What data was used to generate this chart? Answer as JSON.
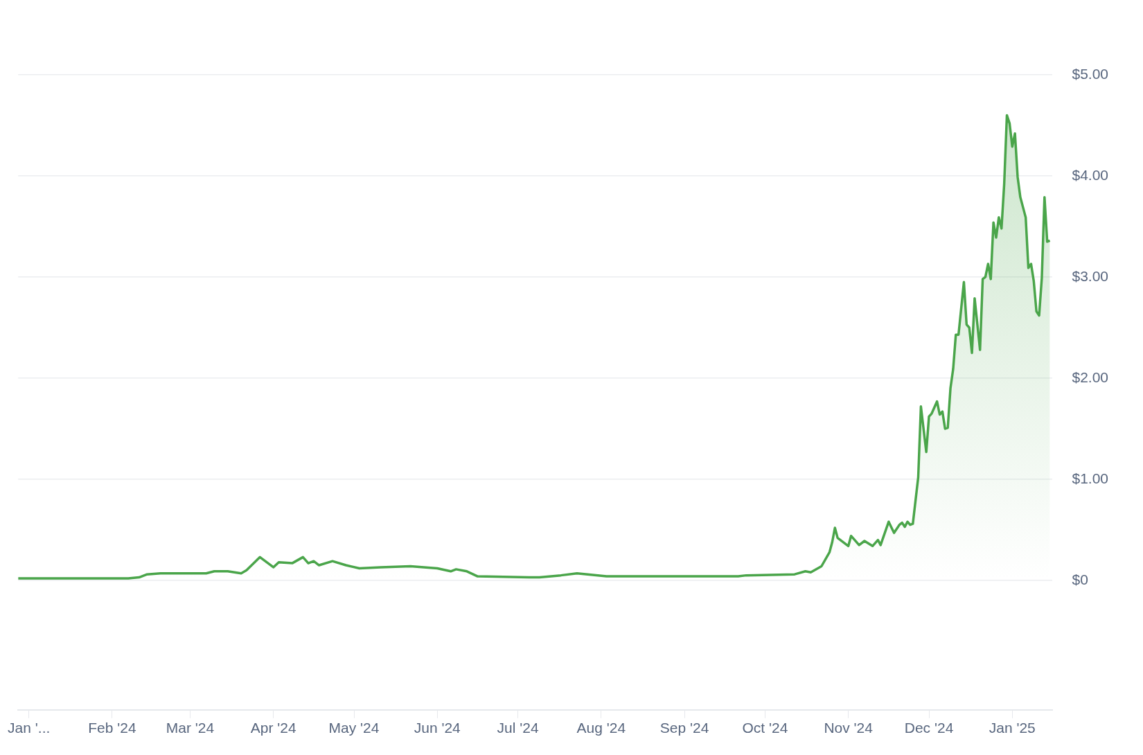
{
  "chart_data": {
    "type": "area",
    "x": [
      "2023-12-28",
      "2024-01-15",
      "2024-02-01",
      "2024-02-07",
      "2024-02-11",
      "2024-02-14",
      "2024-02-19",
      "2024-03-07",
      "2024-03-10",
      "2024-03-15",
      "2024-03-20",
      "2024-03-22",
      "2024-03-27",
      "2024-04-01",
      "2024-04-03",
      "2024-04-08",
      "2024-04-12",
      "2024-04-14",
      "2024-04-16",
      "2024-04-18",
      "2024-04-23",
      "2024-04-28",
      "2024-05-03",
      "2024-05-11",
      "2024-05-22",
      "2024-06-01",
      "2024-06-06",
      "2024-06-08",
      "2024-06-12",
      "2024-06-16",
      "2024-07-06",
      "2024-07-09",
      "2024-07-17",
      "2024-07-23",
      "2024-08-03",
      "2024-09-21",
      "2024-09-24",
      "2024-10-12",
      "2024-10-16",
      "2024-10-18",
      "2024-10-22",
      "2024-10-25",
      "2024-10-26",
      "2024-10-27",
      "2024-10-28",
      "2024-11-01",
      "2024-11-02",
      "2024-11-05",
      "2024-11-07",
      "2024-11-10",
      "2024-11-12",
      "2024-11-13",
      "2024-11-16",
      "2024-11-18",
      "2024-11-20",
      "2024-11-21",
      "2024-11-22",
      "2024-11-23",
      "2024-11-24",
      "2024-11-25",
      "2024-11-27",
      "2024-11-28",
      "2024-11-30",
      "2024-12-01",
      "2024-12-02",
      "2024-12-04",
      "2024-12-05",
      "2024-12-06",
      "2024-12-07",
      "2024-12-08",
      "2024-12-09",
      "2024-12-10",
      "2024-12-11",
      "2024-12-12",
      "2024-12-14",
      "2024-12-15",
      "2024-12-16",
      "2024-12-17",
      "2024-12-18",
      "2024-12-20",
      "2024-12-21",
      "2024-12-22",
      "2024-12-23",
      "2024-12-24",
      "2024-12-25",
      "2024-12-26",
      "2024-12-27",
      "2024-12-28",
      "2024-12-29",
      "2024-12-30",
      "2024-12-31",
      "2025-01-01",
      "2025-01-02",
      "2025-01-03",
      "2025-01-04",
      "2025-01-06",
      "2025-01-07",
      "2025-01-08",
      "2025-01-09",
      "2025-01-10",
      "2025-01-11",
      "2025-01-12",
      "2025-01-13",
      "2025-01-14",
      "2025-01-15"
    ],
    "series": [
      {
        "color": "#4aa54a",
        "values": [
          0.02,
          0.02,
          0.02,
          0.02,
          0.03,
          0.06,
          0.07,
          0.07,
          0.09,
          0.09,
          0.07,
          0.1,
          0.23,
          0.13,
          0.18,
          0.17,
          0.23,
          0.17,
          0.19,
          0.15,
          0.19,
          0.15,
          0.12,
          0.13,
          0.14,
          0.12,
          0.09,
          0.11,
          0.09,
          0.04,
          0.03,
          0.03,
          0.05,
          0.07,
          0.04,
          0.04,
          0.05,
          0.06,
          0.09,
          0.08,
          0.14,
          0.28,
          0.38,
          0.52,
          0.42,
          0.34,
          0.44,
          0.35,
          0.39,
          0.34,
          0.4,
          0.35,
          0.58,
          0.47,
          0.55,
          0.57,
          0.53,
          0.58,
          0.55,
          0.56,
          1.02,
          1.72,
          1.27,
          1.62,
          1.65,
          1.77,
          1.64,
          1.67,
          1.5,
          1.51,
          1.9,
          2.09,
          2.43,
          2.43,
          2.95,
          2.53,
          2.5,
          2.25,
          2.79,
          2.28,
          2.98,
          3.0,
          3.13,
          2.98,
          3.54,
          3.39,
          3.59,
          3.48,
          3.92,
          4.6,
          4.52,
          4.29,
          4.42,
          3.99,
          3.79,
          3.59,
          3.09,
          3.13,
          2.96,
          2.66,
          2.62,
          2.99,
          3.79,
          3.35,
          3.36
        ]
      }
    ],
    "xlim": [
      "2023-12-28",
      "2025-01-16"
    ],
    "xticks": [
      {
        "value": "2024-01-01",
        "label": "Jan '..."
      },
      {
        "value": "2024-02-01",
        "label": "Feb '24"
      },
      {
        "value": "2024-03-01",
        "label": "Mar '24"
      },
      {
        "value": "2024-04-01",
        "label": "Apr '24"
      },
      {
        "value": "2024-05-01",
        "label": "May '24"
      },
      {
        "value": "2024-06-01",
        "label": "Jun '24"
      },
      {
        "value": "2024-07-01",
        "label": "Jul '24"
      },
      {
        "value": "2024-08-01",
        "label": "Aug '24"
      },
      {
        "value": "2024-09-01",
        "label": "Sep '24"
      },
      {
        "value": "2024-10-01",
        "label": "Oct '24"
      },
      {
        "value": "2024-11-01",
        "label": "Nov '24"
      },
      {
        "value": "2024-12-01",
        "label": "Dec '24"
      },
      {
        "value": "2025-01-01",
        "label": "Jan '25"
      }
    ],
    "ylim": [
      -1.28,
      5
    ],
    "yticks": [
      {
        "value": 0,
        "label": "$0"
      },
      {
        "value": 1,
        "label": "$1.00"
      },
      {
        "value": 2,
        "label": "$2.00"
      },
      {
        "value": 3,
        "label": "$3.00"
      },
      {
        "value": 4,
        "label": "$4.00"
      },
      {
        "value": 5,
        "label": "$5.00"
      }
    ],
    "grid": "y",
    "legend": false,
    "marker": "none",
    "line_style": "solid"
  }
}
